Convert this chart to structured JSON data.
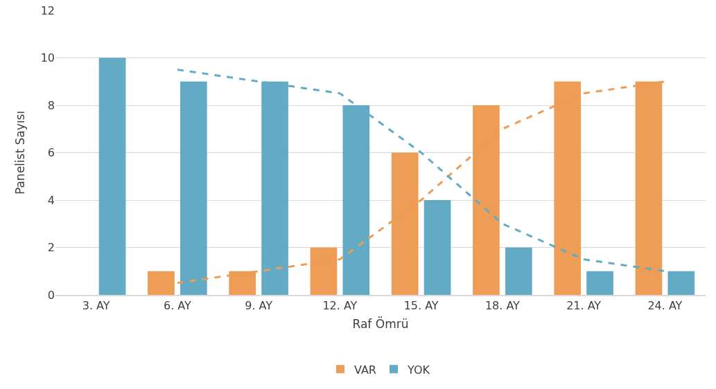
{
  "chart_data": {
    "type": "bar",
    "xlabel": "Raf Ömrü",
    "ylabel": "Panelist Sayısı",
    "categories": [
      "3. AY",
      "6. AY",
      "9. AY",
      "12. AY",
      "15. AY",
      "18. AY",
      "21. AY",
      "24. AY"
    ],
    "series": [
      {
        "name": "VAR",
        "color": "#ed9d56",
        "values": [
          0,
          1,
          1,
          2,
          6,
          8,
          9,
          9
        ]
      },
      {
        "name": "YOK",
        "color": "#63abc4",
        "values": [
          10,
          9,
          9,
          8,
          4,
          2,
          1,
          1
        ]
      },
      {
        "type": "line",
        "line_style": "dashed",
        "color": "#ed9d56",
        "values": [
          null,
          0.5,
          1,
          1.5,
          4,
          7,
          8.5,
          9
        ]
      },
      {
        "type": "line",
        "line_style": "dashed",
        "color": "#63abc4",
        "values": [
          null,
          9.5,
          9,
          8.5,
          6,
          3,
          1.5,
          1
        ]
      }
    ],
    "ylim": [
      0,
      12
    ],
    "yticks": [
      0,
      2,
      4,
      6,
      8,
      10,
      12
    ],
    "grid": "y",
    "legend": "bottom"
  }
}
